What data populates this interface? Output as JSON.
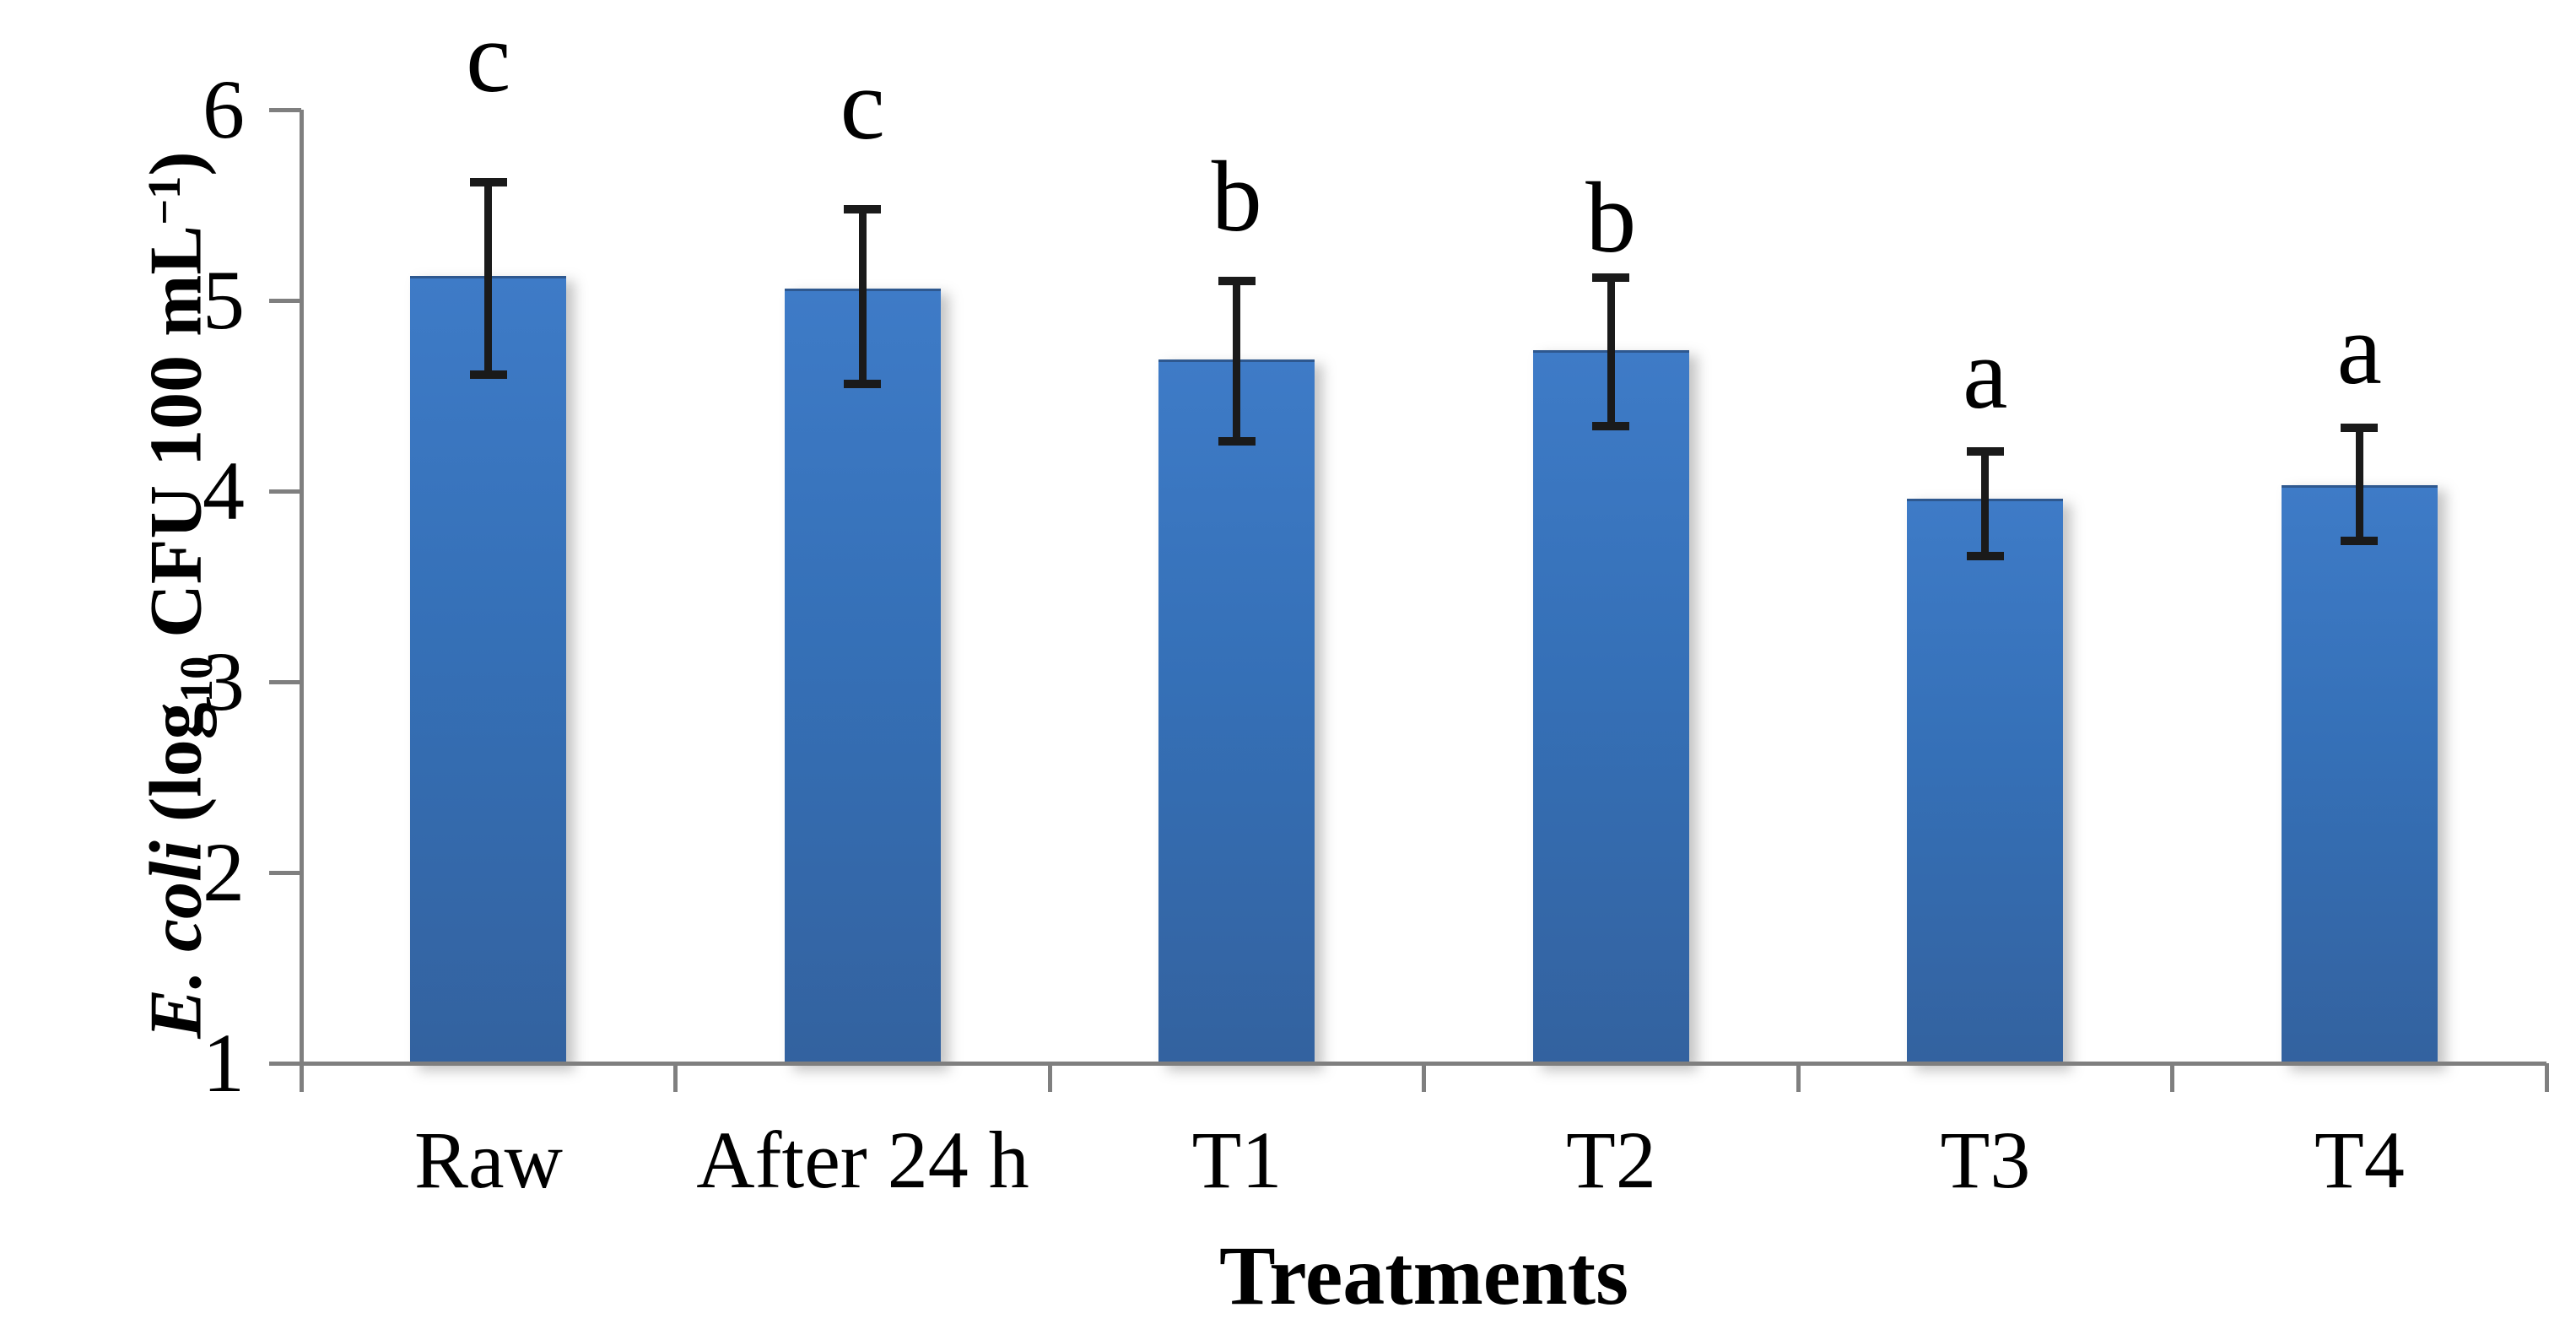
{
  "y_axis_label": {
    "species": "E. coli",
    "pre": " (log",
    "sub": "10",
    "mid": " CFU 100 mL",
    "sup": "−1",
    "close": ")"
  },
  "chart_data": {
    "type": "bar",
    "title": "",
    "xlabel": "Treatments",
    "ylabel": "E. coli (log10 CFU 100 mL-1)",
    "ylim": [
      1,
      6
    ],
    "yticks": [
      1,
      2,
      3,
      4,
      5,
      6
    ],
    "grid": "off",
    "legend": "none",
    "categories": [
      "Raw",
      "After 24 h",
      "T1",
      "T2",
      "T3",
      "T4"
    ],
    "values": [
      5.13,
      5.06,
      4.69,
      4.74,
      3.96,
      4.03
    ],
    "error_upper": [
      5.62,
      5.48,
      5.1,
      5.12,
      4.21,
      4.33
    ],
    "error_lower": [
      4.61,
      4.56,
      4.26,
      4.34,
      3.66,
      3.74
    ],
    "sig_letters": [
      "c",
      "c",
      "b",
      "b",
      "a",
      "a"
    ],
    "sig_letter_y": [
      6.24,
      5.99,
      5.51,
      5.4,
      4.58,
      4.71
    ],
    "bar_color_top": "#3e7bc7",
    "bar_color_bottom": "#33629f",
    "axis_color": "#7f7f7f",
    "error_color": "#1a1a1a"
  }
}
